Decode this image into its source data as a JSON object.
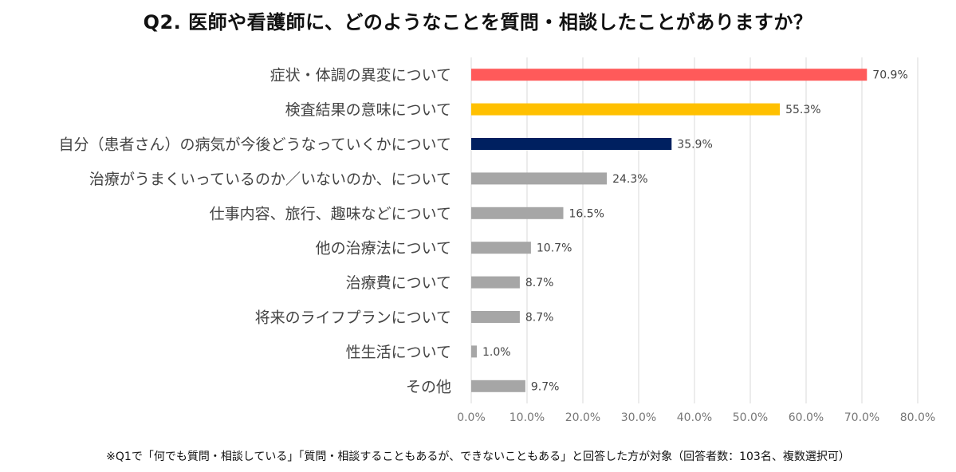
{
  "chart_data": {
    "type": "bar",
    "orientation": "horizontal",
    "title": "Q2. 医師や看護師に、どのようなことを質問・相談したことがありますか？",
    "categories": [
      "症状・体調の異変について",
      "検査結果の意味について",
      "自分（患者さん）の病気が今後どうなっていくかについて",
      "治療がうまくいっているのか／いないのか、について",
      "仕事内容、旅行、趣味などについて",
      "他の治療法について",
      "治療費について",
      "将来のライフプランについて",
      "性生活について",
      "その他"
    ],
    "values": [
      70.9,
      55.3,
      35.9,
      24.3,
      16.5,
      10.7,
      8.7,
      8.7,
      1.0,
      9.7
    ],
    "value_labels": [
      "70.9%",
      "55.3%",
      "35.9%",
      "24.3%",
      "16.5%",
      "10.7%",
      "8.7%",
      "8.7%",
      "1.0%",
      "9.7%"
    ],
    "bar_colors": [
      "#ff5a5a",
      "#ffc000",
      "#002060",
      "#a6a6a6",
      "#a6a6a6",
      "#a6a6a6",
      "#a6a6a6",
      "#a6a6a6",
      "#a6a6a6",
      "#a6a6a6"
    ],
    "xlim": [
      0,
      80
    ],
    "ticks": [
      0,
      10,
      20,
      30,
      40,
      50,
      60,
      70,
      80
    ],
    "tick_labels": [
      "0.0%",
      "10.0%",
      "20.0%",
      "30.0%",
      "40.0%",
      "50.0%",
      "60.0%",
      "70.0%",
      "80.0%"
    ],
    "grid": true,
    "xlabel": "",
    "ylabel": ""
  },
  "footnote": "※Q1で「何でも質問・相談している」「質問・相談することもあるが、できないこともある」と回答した方が対象（回答者数：103名、複数選択可）"
}
